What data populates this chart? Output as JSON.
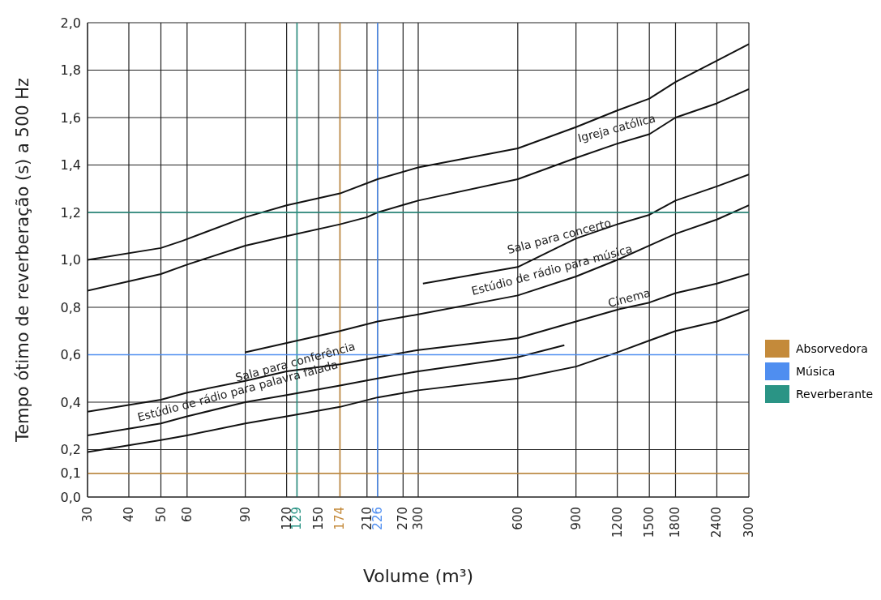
{
  "chart_data": {
    "type": "line",
    "xlabel": "Volume (m³)",
    "ylabel": "Tempo ótimo de reverberação (s) a 500 Hz",
    "log": "x",
    "grid": true,
    "legend": "right",
    "line_style": "solid",
    "xlim": [
      30,
      3000
    ],
    "xticks": [
      30,
      40,
      50,
      60,
      90,
      120,
      129,
      150,
      174,
      210,
      226,
      270,
      300,
      600,
      900,
      1200,
      1500,
      1800,
      2400,
      3000
    ],
    "ylim": [
      0,
      2
    ],
    "yticks": [
      {
        "value": 0,
        "label": "0,0"
      },
      {
        "value": 0.1,
        "label": "0,1"
      },
      {
        "value": 0.2,
        "label": "0,2"
      },
      {
        "value": 0.4,
        "label": "0,4"
      },
      {
        "value": 0.6,
        "label": "0,6"
      },
      {
        "value": 0.8,
        "label": "0,8"
      },
      {
        "value": 1.0,
        "label": "1,0"
      },
      {
        "value": 1.2,
        "label": "1,2"
      },
      {
        "value": 1.4,
        "label": "1,4"
      },
      {
        "value": 1.6,
        "label": "1,6"
      },
      {
        "value": 1.8,
        "label": "1,8"
      },
      {
        "value": 2.0,
        "label": "2,0"
      }
    ],
    "series": [
      {
        "color": "#111111",
        "x": [
          30,
          50,
          58,
          90,
          120,
          174,
          226,
          300,
          600,
          900,
          1200,
          1500,
          1800,
          2400,
          3000
        ],
        "values": [
          1.0,
          1.05,
          1.08,
          1.18,
          1.23,
          1.28,
          1.34,
          1.39,
          1.47,
          1.56,
          1.63,
          1.68,
          1.75,
          1.84,
          1.91
        ]
      },
      {
        "color": "#111111",
        "x": [
          30,
          50,
          60,
          90,
          120,
          174,
          210,
          226,
          300,
          600,
          900,
          1200,
          1500,
          1800,
          2400,
          3000
        ],
        "values": [
          0.87,
          0.94,
          0.98,
          1.06,
          1.1,
          1.15,
          1.18,
          1.2,
          1.25,
          1.34,
          1.43,
          1.49,
          1.53,
          1.6,
          1.66,
          1.72
        ]
      },
      {
        "color": "#111111",
        "x": [
          310,
          600,
          900,
          1200,
          1500,
          1800,
          2400,
          3000
        ],
        "values": [
          0.9,
          0.97,
          1.09,
          1.15,
          1.19,
          1.25,
          1.31,
          1.36
        ]
      },
      {
        "color": "#111111",
        "x": [
          90,
          174,
          226,
          300,
          600,
          900,
          1200,
          1500,
          1800,
          2400,
          3000
        ],
        "values": [
          0.61,
          0.7,
          0.74,
          0.77,
          0.85,
          0.93,
          1.0,
          1.06,
          1.11,
          1.17,
          1.23
        ]
      },
      {
        "color": "#111111",
        "x": [
          30,
          50,
          60,
          90,
          120,
          174,
          226,
          300,
          600,
          900,
          1200,
          1500,
          1800,
          2400,
          3000
        ],
        "values": [
          0.36,
          0.41,
          0.44,
          0.49,
          0.53,
          0.56,
          0.59,
          0.62,
          0.67,
          0.74,
          0.79,
          0.82,
          0.86,
          0.9,
          0.94
        ]
      },
      {
        "color": "#111111",
        "x": [
          30,
          50,
          60,
          90,
          120,
          174,
          226,
          300,
          600,
          830
        ],
        "values": [
          0.26,
          0.31,
          0.34,
          0.4,
          0.43,
          0.47,
          0.5,
          0.53,
          0.59,
          0.64
        ]
      },
      {
        "color": "#111111",
        "x": [
          30,
          50,
          60,
          90,
          120,
          174,
          226,
          300,
          600,
          900,
          1200,
          1500,
          1800,
          2400,
          3000
        ],
        "values": [
          0.19,
          0.24,
          0.26,
          0.31,
          0.34,
          0.38,
          0.42,
          0.45,
          0.5,
          0.55,
          0.61,
          0.66,
          0.7,
          0.74,
          0.79
        ]
      },
      {
        "name": "Absorvedora",
        "color": "#c48a3a",
        "x": [
          30,
          3000
        ],
        "values": [
          0.1,
          0.1
        ]
      },
      {
        "name": "Música",
        "color": "#4f8ef0",
        "x": [
          30,
          3000
        ],
        "values": [
          0.6,
          0.6
        ]
      },
      {
        "name": "Reverberante",
        "color": "#2a9485",
        "x": [
          30,
          3000
        ],
        "values": [
          1.2,
          1.2
        ]
      }
    ],
    "ref_lines": [
      {
        "axis": "x",
        "value": 129,
        "color": "#2a9485"
      },
      {
        "axis": "x",
        "value": 174,
        "color": "#c48a3a"
      },
      {
        "axis": "x",
        "value": 226,
        "color": "#4f8ef0"
      }
    ],
    "annotations": [
      "Igreja católica",
      "Sala para concerto",
      "Estúdio de rádio para música",
      "Cinema",
      "Sala para conferência",
      "Estúdio de rádio para palavra falada"
    ]
  }
}
